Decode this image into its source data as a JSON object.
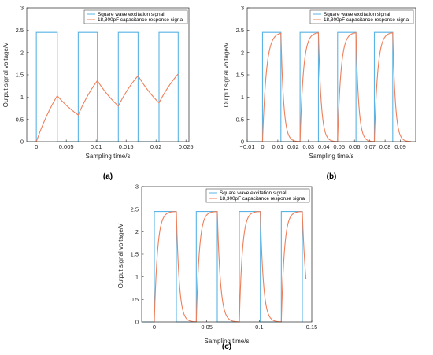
{
  "figure": {
    "panels": [
      {
        "id": "a",
        "panel_label": "(a)",
        "xlabel": "Sampling time/s",
        "ylabel": "Output signal voltage/V",
        "xlim": [
          -0.0016,
          0.0255
        ],
        "ylim": [
          0,
          3
        ],
        "xticks": [
          0,
          0.005,
          0.01,
          0.015,
          0.02,
          0.025
        ],
        "xtick_labels": [
          "0",
          "0.005",
          "0.01",
          "0.015",
          "0.02",
          "0.025"
        ],
        "yticks": [
          0,
          0.5,
          1,
          1.5,
          2,
          2.5,
          3
        ],
        "ytick_labels": [
          "0",
          "0.5",
          "1",
          "1.5",
          "2",
          "2.5",
          "3"
        ]
      },
      {
        "id": "b",
        "panel_label": "(b)",
        "xlabel": "Sampling time/s",
        "ylabel": "Output signal voltage/V",
        "xlim": [
          -0.01,
          0.1
        ],
        "ylim": [
          0,
          3
        ],
        "xticks": [
          -0.01,
          0,
          0.01,
          0.02,
          0.03,
          0.04,
          0.05,
          0.06,
          0.07,
          0.08,
          0.09
        ],
        "xtick_labels": [
          "−0.01",
          "0",
          "0.01",
          "0.02",
          "0.03",
          "0.04",
          "0.05",
          "0.06",
          "0.07",
          "0.08",
          "0.09"
        ],
        "yticks": [
          0,
          0.5,
          1,
          1.5,
          2,
          2.5,
          3
        ],
        "ytick_labels": [
          "0",
          "0.5",
          "1",
          "1.5",
          "2",
          "2.5",
          "3"
        ]
      },
      {
        "id": "c",
        "panel_label": "(c)",
        "xlabel": "Sampling time/s",
        "ylabel": "Output signal voltage/V",
        "xlim": [
          -0.012,
          0.15
        ],
        "ylim": [
          0,
          3
        ],
        "xticks": [
          0,
          0.05,
          0.1,
          0.15
        ],
        "xtick_labels": [
          "0",
          "0.05",
          "0.1",
          "0.15"
        ],
        "yticks": [
          0,
          0.5,
          1,
          1.5,
          2,
          2.5,
          3
        ],
        "ytick_labels": [
          "0",
          "0.5",
          "1",
          "1.5",
          "2",
          "2.5",
          "3"
        ]
      }
    ],
    "legend": {
      "square_label": "Square wave excitation signal",
      "response_label": "18,300pF capacitance response signal"
    },
    "colors": {
      "square": "#5ab4e5",
      "response": "#ef7f5a",
      "axes": "#262626"
    }
  },
  "chart_data": [
    {
      "type": "line",
      "panel": "(a)",
      "xlabel": "Sampling time/s",
      "ylabel": "Output signal voltage/V",
      "xlim": [
        -0.0016,
        0.0255
      ],
      "ylim": [
        0,
        3
      ],
      "grid": false,
      "legend_position": "top-right",
      "series": [
        {
          "name": "Square wave excitation signal",
          "x": [
            -0.0016,
            0,
            0,
            0.0035,
            0.0035,
            0.007,
            0.007,
            0.0102,
            0.0102,
            0.0137,
            0.0137,
            0.017,
            0.017,
            0.0205,
            0.0205,
            0.0237,
            0.0237
          ],
          "y": [
            0,
            0,
            2.45,
            2.45,
            0,
            0,
            2.45,
            2.45,
            0,
            0,
            2.45,
            2.45,
            0,
            0,
            2.45,
            2.45,
            0
          ]
        },
        {
          "name": "18,300pF capacitance response signal",
          "x": [
            0,
            0.0035,
            0.007,
            0.0102,
            0.0137,
            0.017,
            0.0205,
            0.0237
          ],
          "y": [
            0,
            1.03,
            0.6,
            1.37,
            0.8,
            1.48,
            0.87,
            1.52
          ]
        }
      ]
    },
    {
      "type": "line",
      "panel": "(b)",
      "xlabel": "Sampling time/s",
      "ylabel": "Output signal voltage/V",
      "xlim": [
        -0.01,
        0.1
      ],
      "ylim": [
        0,
        3
      ],
      "grid": false,
      "legend_position": "top-right",
      "series": [
        {
          "name": "Square wave excitation signal",
          "x": [
            -0.01,
            0,
            0,
            0.012,
            0.012,
            0.0245,
            0.0245,
            0.0365,
            0.0365,
            0.049,
            0.049,
            0.061,
            0.061,
            0.073,
            0.073,
            0.085,
            0.085
          ],
          "y": [
            0,
            0,
            2.45,
            2.45,
            0,
            0,
            2.45,
            2.45,
            0,
            0,
            2.45,
            2.45,
            0,
            0,
            2.45,
            2.45,
            0
          ]
        },
        {
          "name": "18,300pF capacitance response signal",
          "x": [
            0,
            0.012,
            0.0245,
            0.0365,
            0.049,
            0.061,
            0.073,
            0.085,
            0.097
          ],
          "y": [
            0,
            2.43,
            0.0,
            2.44,
            0.0,
            2.44,
            0.0,
            2.44,
            0.0
          ]
        }
      ]
    },
    {
      "type": "line",
      "panel": "(c)",
      "xlabel": "Sampling time/s",
      "ylabel": "Output signal voltage/V",
      "xlim": [
        -0.012,
        0.15
      ],
      "ylim": [
        0,
        3
      ],
      "grid": false,
      "legend_position": "top-right",
      "series": [
        {
          "name": "Square wave excitation signal",
          "x": [
            -0.012,
            0,
            0,
            0.021,
            0.021,
            0.04,
            0.04,
            0.06,
            0.06,
            0.081,
            0.081,
            0.101,
            0.101,
            0.121,
            0.121,
            0.141,
            0.141
          ],
          "y": [
            0,
            0,
            2.45,
            2.45,
            0,
            0,
            2.45,
            2.45,
            0,
            0,
            2.45,
            2.45,
            0,
            0,
            2.45,
            2.45,
            0
          ]
        },
        {
          "name": "18,300pF capacitance response signal",
          "x": [
            0,
            0.021,
            0.04,
            0.06,
            0.081,
            0.101,
            0.121,
            0.141,
            0.1445
          ],
          "y": [
            0,
            2.45,
            0.0,
            2.45,
            0.0,
            2.45,
            0.0,
            2.45,
            0.95
          ]
        }
      ]
    }
  ]
}
